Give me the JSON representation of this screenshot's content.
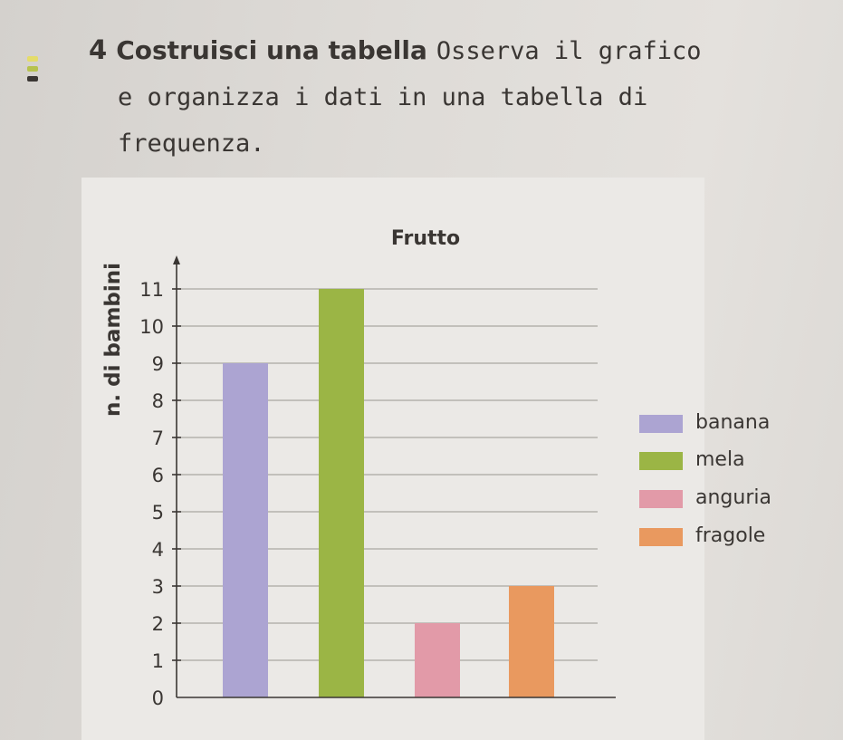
{
  "exercise": {
    "number": "4",
    "title": "Costruisci una tabella",
    "line1": "Osserva il grafico",
    "line2": "e organizza i dati in una tabella di",
    "line3": "frequenza."
  },
  "colors": {
    "banana": "#aca4d2",
    "mela": "#9bb545",
    "anguria": "#e29aa8",
    "fragole": "#e9995f"
  },
  "chart_data": {
    "type": "bar",
    "title": "Frutto",
    "ylabel": "n. di bambini",
    "xlabel": "",
    "ylim": [
      0,
      11
    ],
    "yticks": [
      0,
      1,
      2,
      3,
      4,
      5,
      6,
      7,
      8,
      9,
      10,
      11
    ],
    "categories": [
      "banana",
      "mela",
      "anguria",
      "fragole"
    ],
    "values": [
      9,
      11,
      2,
      3
    ],
    "grid": true,
    "legend": "right"
  }
}
